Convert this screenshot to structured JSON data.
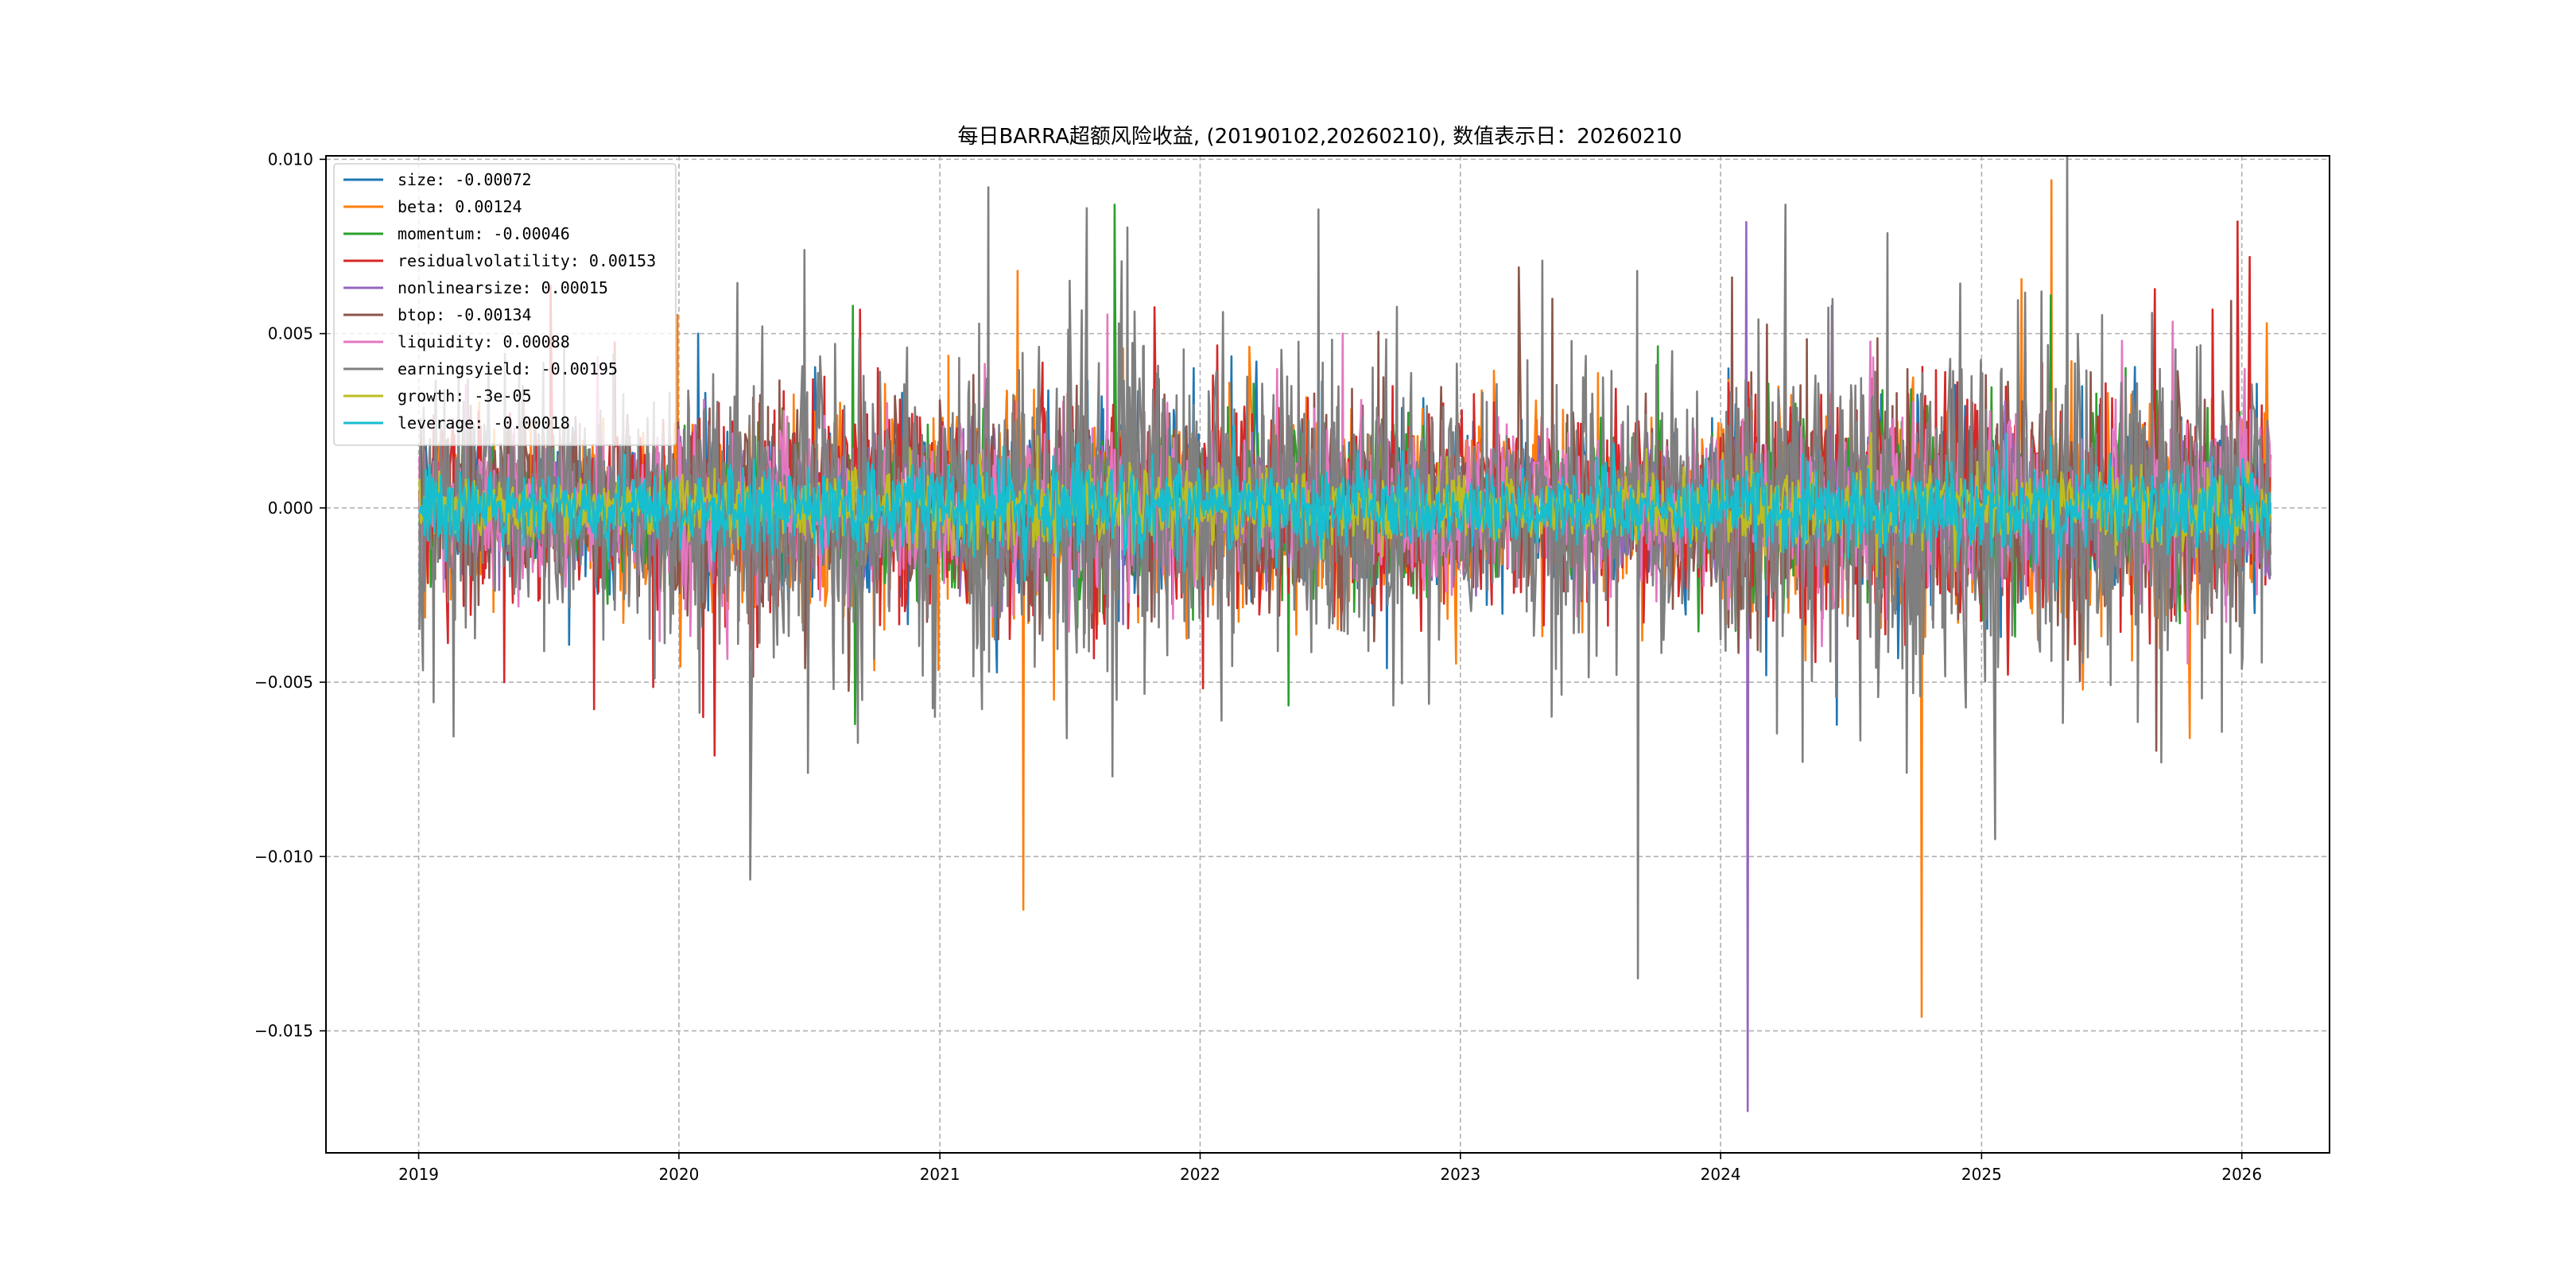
{
  "chart_data": {
    "type": "line",
    "title": "每日BARRA超额风险收益, (20190102,20260210),  数值表示日：20260210",
    "xlabel": "",
    "ylabel": "",
    "x_range": [
      "2019-01-02",
      "2026-02-10"
    ],
    "xlim": [
      "2018-08-24",
      "2026-05-04"
    ],
    "ylim": [
      -0.0185,
      0.0101
    ],
    "x_ticks": [
      "2019",
      "2020",
      "2021",
      "2022",
      "2023",
      "2024",
      "2025",
      "2026"
    ],
    "x_tick_dates": [
      "2019-01-01",
      "2020-01-01",
      "2021-01-01",
      "2022-01-01",
      "2023-01-01",
      "2024-01-01",
      "2025-01-01",
      "2026-01-01"
    ],
    "y_ticks": [
      "0.010",
      "0.005",
      "0.000",
      "−0.005",
      "−0.010",
      "−0.015"
    ],
    "y_tick_values": [
      0.01,
      0.005,
      0.0,
      -0.005,
      -0.01,
      -0.015
    ],
    "grid": true,
    "grid_style": "dashed",
    "legend_position": "upper-left",
    "series": [
      {
        "name": "size: -0.00072",
        "color": "#1f77b4",
        "amplitude": 0.0012,
        "last": -0.00072,
        "extremes": [
          {
            "date": "2020-01-28",
            "value": 0.005
          },
          {
            "date": "2022-03-20",
            "value": 0.0042
          },
          {
            "date": "2022-09-20",
            "value": -0.0046
          },
          {
            "date": "2024-03-05",
            "value": -0.0048
          }
        ]
      },
      {
        "name": "beta: 0.00124",
        "color": "#ff7f0e",
        "amplitude": 0.0014,
        "last": 0.00124,
        "extremes": [
          {
            "date": "2019-10-15",
            "value": -0.0033
          },
          {
            "date": "2021-04-20",
            "value": 0.0068
          },
          {
            "date": "2021-06-10",
            "value": -0.0055
          },
          {
            "date": "2024-10-09",
            "value": -0.0146
          },
          {
            "date": "2025-04-09",
            "value": 0.0094
          },
          {
            "date": "2025-10-20",
            "value": -0.0066
          },
          {
            "date": "2026-02-05",
            "value": 0.0053
          }
        ]
      },
      {
        "name": "momentum: -0.00046",
        "color": "#2ca02c",
        "amplitude": 0.0011,
        "last": -0.00046,
        "extremes": [
          {
            "date": "2020-09-01",
            "value": 0.0058
          },
          {
            "date": "2020-09-05",
            "value": -0.0062
          },
          {
            "date": "2021-09-03",
            "value": 0.0087
          },
          {
            "date": "2025-04-08",
            "value": 0.0061
          }
        ]
      },
      {
        "name": "residualvolatility: 0.00153",
        "color": "#d62728",
        "amplitude": 0.0015,
        "last": 0.00153,
        "extremes": [
          {
            "date": "2019-05-01",
            "value": -0.005
          },
          {
            "date": "2020-02-04",
            "value": -0.006
          },
          {
            "date": "2020-02-20",
            "value": -0.0071
          },
          {
            "date": "2026-01-12",
            "value": 0.0072
          }
        ]
      },
      {
        "name": "nonlinearsize: 0.00015",
        "color": "#9467bd",
        "amplitude": 0.0009,
        "last": 0.00015,
        "extremes": [
          {
            "date": "2024-02-06",
            "value": 0.0082
          },
          {
            "date": "2024-02-08",
            "value": -0.0173
          },
          {
            "date": "2024-06-05",
            "value": 0.0058
          },
          {
            "date": "2024-06-12",
            "value": -0.0045
          }
        ]
      },
      {
        "name": "btop: -0.00134",
        "color": "#8c564b",
        "amplitude": 0.0013,
        "last": -0.00134,
        "extremes": [
          {
            "date": "2023-03-25",
            "value": 0.0069
          },
          {
            "date": "2023-05-10",
            "value": 0.006
          }
        ]
      },
      {
        "name": "liquidity: 0.00088",
        "color": "#e377c2",
        "amplitude": 0.0012,
        "last": 0.00088,
        "extremes": [
          {
            "date": "2022-07-20",
            "value": 0.005
          }
        ]
      },
      {
        "name": "earningsyield: -0.00195",
        "color": "#7f7f7f",
        "amplitude": 0.0022,
        "last": -0.00195,
        "extremes": [
          {
            "date": "2020-06-30",
            "value": -0.0076
          },
          {
            "date": "2020-06-25",
            "value": 0.0074
          },
          {
            "date": "2021-03-10",
            "value": 0.0092
          },
          {
            "date": "2021-08-31",
            "value": -0.0077
          },
          {
            "date": "2024-04-01",
            "value": 0.0087
          },
          {
            "date": "2025-01-20",
            "value": -0.0095
          },
          {
            "date": "2025-09-10",
            "value": -0.0073
          }
        ]
      },
      {
        "name": "growth: -3e-05",
        "color": "#bcbd22",
        "amplitude": 0.0005,
        "last": -3e-05,
        "extremes": []
      },
      {
        "name": "leverage: -0.00018",
        "color": "#17becf",
        "amplitude": 0.0006,
        "last": -0.00018,
        "extremes": []
      }
    ]
  }
}
